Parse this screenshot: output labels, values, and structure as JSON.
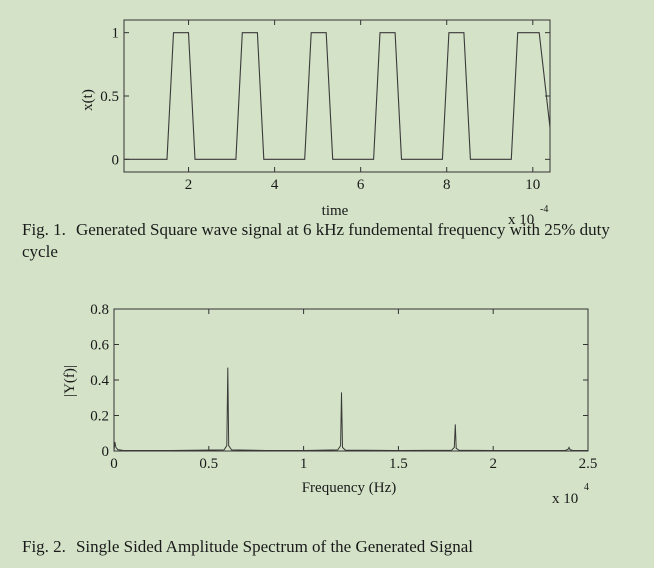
{
  "chart_data": [
    {
      "type": "line",
      "title": "",
      "xlabel": "time",
      "ylabel": "x(t)",
      "x_multiplier": "x 10",
      "x_multiplier_exp": "-4",
      "xlim": [
        0.5,
        10.4
      ],
      "ylim": [
        -0.1,
        1.1
      ],
      "xticks": [
        2,
        4,
        6,
        8,
        10
      ],
      "xtick_labels": [
        "2",
        "4",
        "6",
        "8",
        "10"
      ],
      "yticks": [
        0,
        0.5,
        1
      ],
      "ytick_labels": [
        "0",
        "0.5",
        "1"
      ],
      "grid": false,
      "series": [
        {
          "x": [
            0.5,
            1.5,
            1.65,
            2.0,
            2.15,
            3.1,
            3.25,
            3.6,
            3.75,
            4.7,
            4.85,
            5.2,
            5.35,
            6.3,
            6.45,
            6.8,
            6.95,
            7.9,
            8.05,
            8.4,
            8.55,
            9.5,
            9.65,
            10.0,
            10.15,
            10.4
          ],
          "y": [
            0,
            0,
            1,
            1,
            0,
            0,
            1,
            1,
            0,
            0,
            1,
            1,
            0,
            0,
            1,
            1,
            0,
            0,
            1,
            1,
            0,
            0,
            1,
            1,
            1,
            0.25
          ]
        }
      ]
    },
    {
      "type": "line",
      "title": "",
      "xlabel": "Frequency (Hz)",
      "ylabel": "|Y(f)|",
      "x_multiplier": "x 10",
      "x_multiplier_exp": "4",
      "xlim": [
        0,
        2.5
      ],
      "ylim": [
        0,
        0.8
      ],
      "xticks": [
        0,
        0.5,
        1,
        1.5,
        2,
        2.5
      ],
      "xtick_labels": [
        "0",
        "0.5",
        "1",
        "1.5",
        "2",
        "2.5"
      ],
      "yticks": [
        0,
        0.2,
        0.4,
        0.6,
        0.8
      ],
      "ytick_labels": [
        "0",
        "0.2",
        "0.4",
        "0.6",
        "0.8"
      ],
      "grid": false,
      "series": [
        {
          "x": [
            0,
            0.005,
            0.01,
            0.02,
            0.05,
            0.1,
            0.3,
            0.58,
            0.595,
            0.6,
            0.605,
            0.62,
            0.8,
            1.0,
            1.18,
            1.195,
            1.2,
            1.205,
            1.22,
            1.5,
            1.78,
            1.795,
            1.8,
            1.805,
            1.82,
            2.0,
            2.38,
            2.395,
            2.4,
            2.405,
            2.42,
            2.5
          ],
          "y": [
            0.0,
            0.05,
            0.02,
            0.008,
            0.003,
            0.003,
            0.003,
            0.006,
            0.03,
            0.47,
            0.03,
            0.006,
            0.003,
            0.003,
            0.006,
            0.03,
            0.33,
            0.02,
            0.005,
            0.003,
            0.004,
            0.02,
            0.15,
            0.015,
            0.004,
            0.003,
            0.003,
            0.01,
            0.02,
            0.008,
            0.003,
            0.003
          ]
        }
      ]
    }
  ],
  "captions": {
    "fig1_num": "Fig. 1.",
    "fig1_text": "Generated Square wave signal  at 6 kHz fundemental frequency with 25% duty cycle",
    "fig2_num": "Fig. 2.",
    "fig2_text": "Single Sided Amplitude Spectrum of the Generated Signal"
  }
}
